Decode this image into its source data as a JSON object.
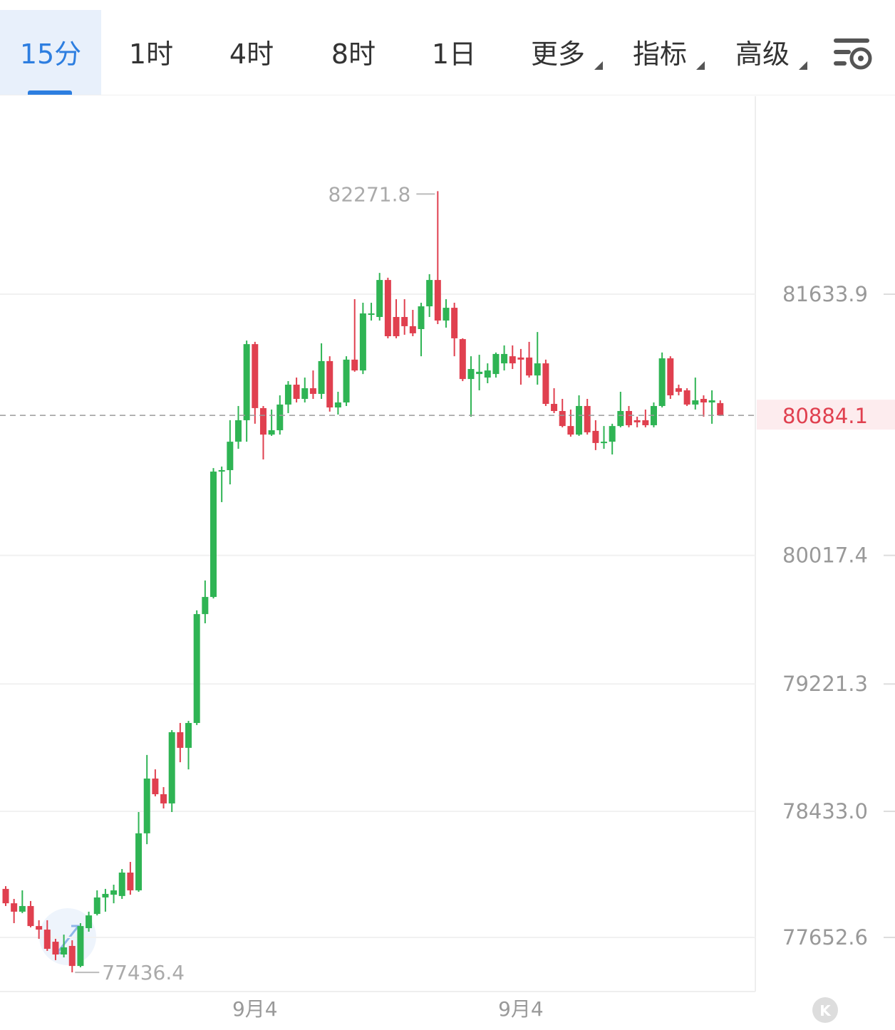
{
  "toolbar": {
    "tabs": [
      "15分",
      "1时",
      "4时",
      "8时",
      "1日",
      "更多",
      "指标",
      "高级"
    ]
  },
  "chart_data": {
    "type": "candlestick",
    "up_color": "#2fb454",
    "down_color": "#e0404f",
    "ylim": [
      77317.7,
      82859.8
    ],
    "yticks": [
      77652.6,
      {
        "value": 78433,
        "label": "78433.0"
      },
      79221.3,
      80017.4,
      81633.9
    ],
    "grid": true,
    "categories": [
      null,
      null,
      null,
      null,
      null,
      null,
      null,
      null,
      null,
      null,
      null,
      null,
      null,
      null,
      null,
      null,
      null,
      null,
      null,
      null,
      null,
      null,
      null,
      null,
      null,
      null,
      null,
      null,
      null,
      null,
      "9月4",
      null,
      null,
      null,
      null,
      null,
      null,
      null,
      null,
      null,
      null,
      null,
      null,
      null,
      null,
      null,
      null,
      null,
      null,
      null,
      null,
      null,
      null,
      null,
      null,
      null,
      null,
      null,
      null,
      null,
      null,
      null,
      "9月4",
      null,
      null,
      null,
      null,
      null,
      null,
      null,
      null,
      null,
      null,
      null,
      null,
      null,
      null,
      null,
      null,
      null,
      null,
      null,
      null,
      null,
      null,
      null,
      null
    ],
    "open": [
      77953,
      77864,
      77812,
      77847,
      77723,
      77701,
      77626,
      77547,
      77600,
      77476,
      77710,
      77798,
      77900,
      77917,
      77909,
      78054,
      77944,
      78297,
      78636,
      78539,
      78482,
      78923,
      78826,
      78980,
      79654,
      79760,
      80536,
      80545,
      80721,
      80854,
      81325,
      80929,
      80765,
      80792,
      80951,
      81074,
      80986,
      81052,
      81017,
      81220,
      80933,
      80964,
      81229,
      81162,
      81506,
      81493,
      81722,
      81493,
      81493,
      81436,
      81418,
      81559,
      81722,
      81471,
      81550,
      81356,
      81109,
      81140,
      81118,
      81140,
      81206,
      81250,
      81242,
      81242,
      81131,
      81206,
      80955,
      80911,
      80818,
      80765,
      80942,
      80788,
      80713,
      80721,
      80818,
      80911,
      80854,
      80854,
      80823,
      80942,
      81237,
      81052,
      81039,
      80951,
      80986,
      80964,
      80960
    ],
    "high": [
      77970,
      77891,
      77944,
      77878,
      77759,
      77759,
      77644,
      77670,
      77635,
      77741,
      77812,
      77944,
      77953,
      77979,
      78076,
      78120,
      78429,
      78782,
      78693,
      78583,
      78936,
      78980,
      78993,
      79677,
      79862,
      80558,
      80567,
      80854,
      80942,
      81347,
      81339,
      80942,
      80920,
      81008,
      81096,
      81118,
      81118,
      81162,
      81330,
      81250,
      81030,
      81250,
      81603,
      81581,
      81581,
      81766,
      81736,
      81603,
      81603,
      81537,
      81581,
      81758,
      82271.8,
      81603,
      81581,
      81361,
      81250,
      81259,
      81206,
      81273,
      81317,
      81317,
      81295,
      81339,
      81400,
      81229,
      81052,
      80986,
      80920,
      81008,
      80986,
      80854,
      80818,
      80832,
      81030,
      80942,
      80876,
      80920,
      80964,
      81273,
      81250,
      81074,
      81052,
      81118,
      81008,
      81039,
      80977
    ],
    "low": [
      77847,
      77741,
      77803,
      77715,
      77644,
      77569,
      77512,
      77529,
      77436.4,
      77468,
      77688,
      77789,
      77812,
      77864,
      77891,
      77917,
      77935,
      78230,
      78526,
      78451,
      78429,
      78737,
      78693,
      78967,
      79597,
      79751,
      80347,
      80457,
      80677,
      80721,
      80832,
      80611,
      80757,
      80765,
      80898,
      80964,
      80964,
      80986,
      80986,
      80907,
      80889,
      80942,
      81154,
      81140,
      81471,
      81471,
      81361,
      81361,
      81383,
      81374,
      81250,
      81493,
      81449,
      81427,
      81250,
      81096,
      80876,
      81039,
      81083,
      81118,
      81162,
      81171,
      81074,
      81118,
      81074,
      80942,
      80898,
      80810,
      80752,
      80757,
      80765,
      80669,
      80677,
      80642,
      80810,
      80810,
      80810,
      80810,
      80810,
      80933,
      80986,
      81008,
      80942,
      80920,
      80876,
      80832,
      80880
    ],
    "close": [
      77864,
      77812,
      77847,
      77723,
      77701,
      77582,
      77547,
      77591,
      77476,
      77723,
      77789,
      77900,
      77922,
      77944,
      78054,
      77944,
      78297,
      78636,
      78539,
      78482,
      78923,
      78826,
      78980,
      79654,
      79760,
      80536,
      80545,
      80721,
      80854,
      81325,
      80929,
      80765,
      80792,
      80951,
      81074,
      80986,
      81052,
      81017,
      81220,
      80933,
      80964,
      81229,
      81162,
      81515,
      81515,
      81722,
      81374,
      81374,
      81436,
      81392,
      81559,
      81722,
      81471,
      81550,
      81361,
      81109,
      81171,
      81154,
      81162,
      81264,
      81264,
      81206,
      81229,
      81131,
      81206,
      80955,
      80911,
      80818,
      80765,
      80942,
      80779,
      80713,
      80721,
      80818,
      80911,
      80823,
      80841,
      80823,
      80942,
      81237,
      81008,
      81030,
      80951,
      80977,
      80964,
      80977,
      80884.1
    ]
  }
}
